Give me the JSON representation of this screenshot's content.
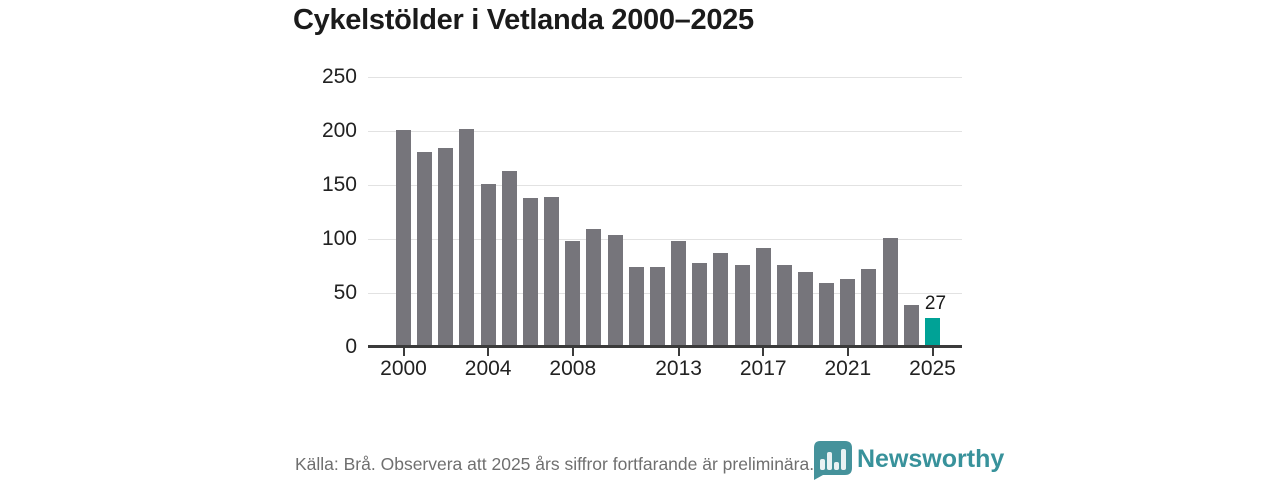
{
  "title": "Cykelstölder i Vetlanda 2000–2025",
  "footer": {
    "source_note": "Källa: Brå. Observera att 2025 års siffror fortfarande är preliminära.",
    "brand": "Newsworthy"
  },
  "chart_data": {
    "type": "bar",
    "title": "Cykelstölder i Vetlanda 2000–2025",
    "categories": [
      2000,
      2001,
      2002,
      2003,
      2004,
      2005,
      2006,
      2007,
      2008,
      2009,
      2010,
      2011,
      2012,
      2013,
      2014,
      2015,
      2016,
      2017,
      2018,
      2019,
      2020,
      2021,
      2022,
      2023,
      2024,
      2025
    ],
    "values": [
      201,
      181,
      184,
      202,
      151,
      163,
      138,
      139,
      98,
      109,
      104,
      74,
      74,
      98,
      78,
      87,
      76,
      92,
      76,
      69,
      59,
      63,
      72,
      101,
      39,
      27
    ],
    "xlabel": "",
    "ylabel": "",
    "ylim": [
      0,
      250
    ],
    "yticks": [
      0,
      50,
      100,
      150,
      200,
      250
    ],
    "xticks": [
      2000,
      2004,
      2008,
      2013,
      2017,
      2021,
      2025
    ],
    "grid": "horizontal",
    "legend": "none",
    "bar_color": "#76757b",
    "highlight_index": 25,
    "highlight_color": "#00a296",
    "highlight_label": "27"
  }
}
